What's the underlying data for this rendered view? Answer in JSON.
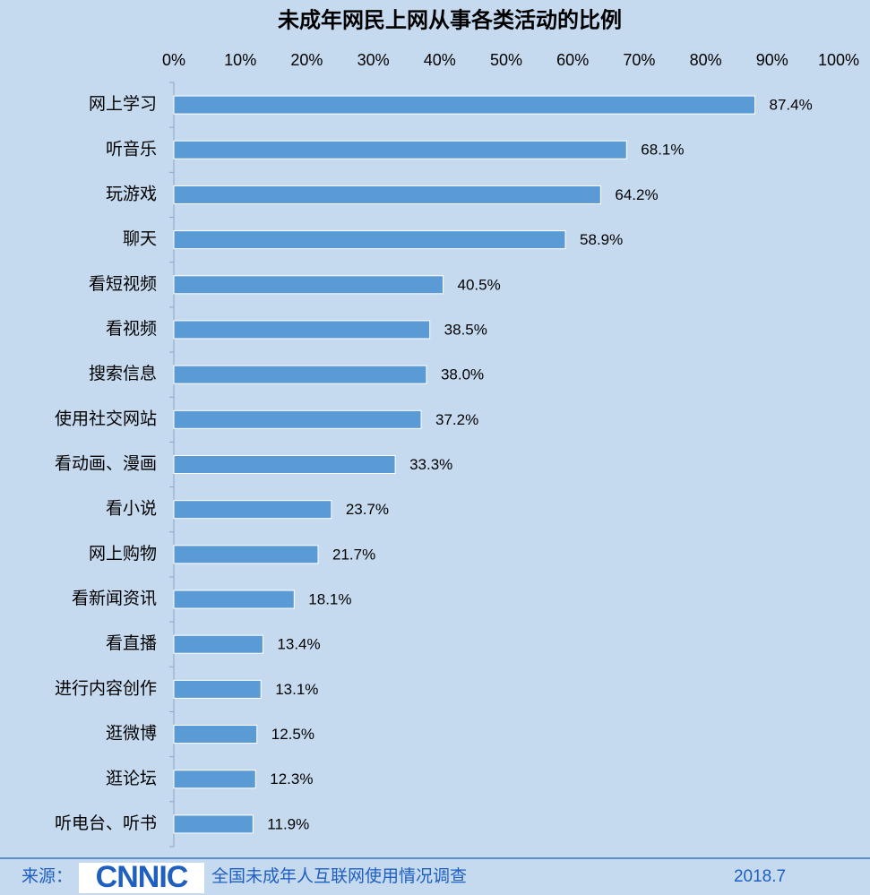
{
  "chart_data": {
    "type": "hbar",
    "title": "未成年网民上网从事各类活动的比例",
    "categories": [
      "网上学习",
      "听音乐",
      "玩游戏",
      "聊天",
      "看短视频",
      "看视频",
      "搜索信息",
      "使用社交网站",
      "看动画、漫画",
      "看小说",
      "网上购物",
      "看新闻资讯",
      "看直播",
      "进行内容创作",
      "逛微博",
      "逛论坛",
      "听电台、听书"
    ],
    "values": [
      87.4,
      68.1,
      64.2,
      58.9,
      40.5,
      38.5,
      38.0,
      37.2,
      33.3,
      23.7,
      21.7,
      18.1,
      13.4,
      13.1,
      12.5,
      12.3,
      11.9
    ],
    "value_labels": [
      "87.4%",
      "68.1%",
      "64.2%",
      "58.9%",
      "40.5%",
      "38.5%",
      "38.0%",
      "37.2%",
      "33.3%",
      "23.7%",
      "21.7%",
      "18.1%",
      "13.4%",
      "13.1%",
      "12.5%",
      "12.3%",
      "11.9%"
    ],
    "color": "#5b9bd5",
    "xlim": [
      0,
      100
    ],
    "xticks": [
      {
        "value": 0,
        "label": "0%"
      },
      {
        "value": 10,
        "label": "10%"
      },
      {
        "value": 20,
        "label": "20%"
      },
      {
        "value": 30,
        "label": "30%"
      },
      {
        "value": 40,
        "label": "40%"
      },
      {
        "value": 50,
        "label": "50%"
      },
      {
        "value": 60,
        "label": "60%"
      },
      {
        "value": 70,
        "label": "70%"
      },
      {
        "value": 80,
        "label": "80%"
      },
      {
        "value": 90,
        "label": "90%"
      },
      {
        "value": 100,
        "label": "100%"
      }
    ],
    "grid": false
  },
  "footer": {
    "source": "来源：",
    "logo": "CNNIC",
    "survey": "全国未成年人互联网使用情况调查",
    "date": "2018.7"
  }
}
